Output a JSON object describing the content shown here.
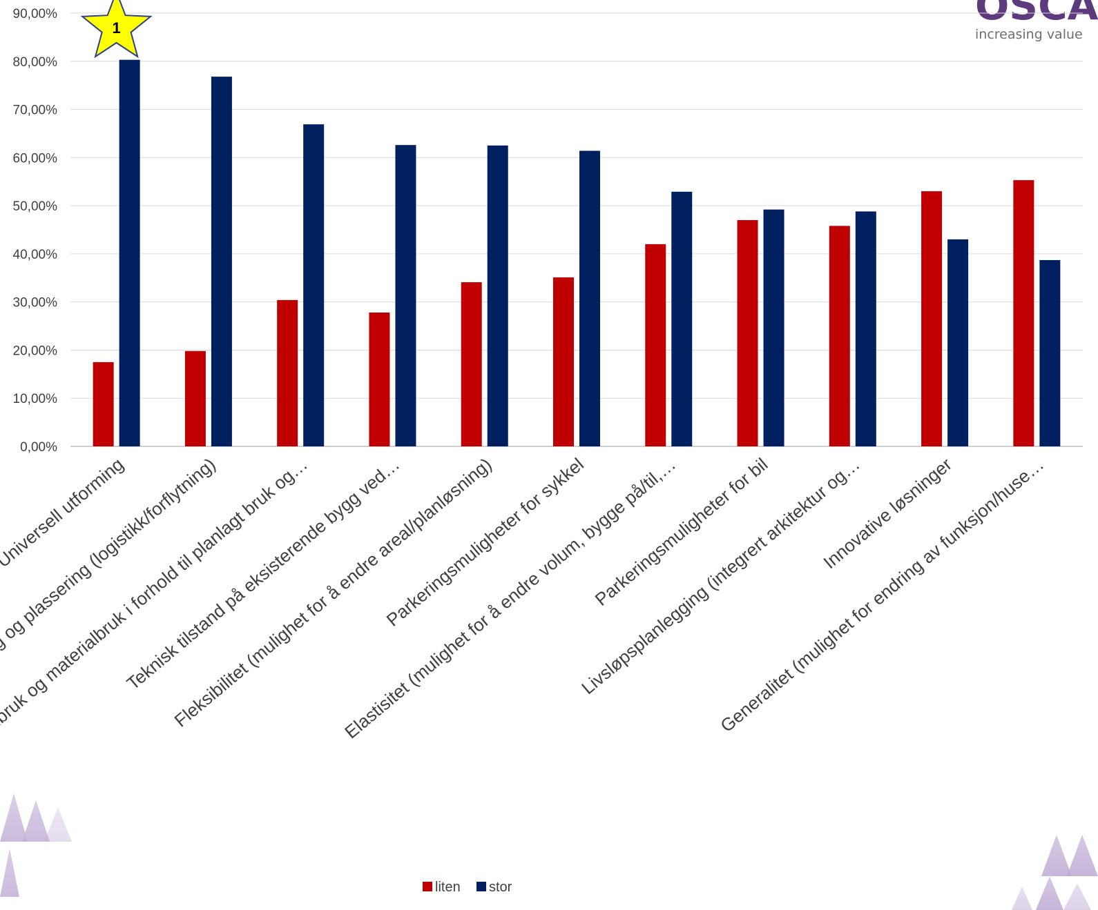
{
  "chart_data": {
    "type": "bar",
    "categories": [
      "Universell utforming",
      "Lokalisering og plassering (logistikk/forflytning)",
      "Arealbruk og materialbruk i forhold til planlagt bruk og…",
      "Teknisk tilstand på eksisterende bygg ved…",
      "Fleksibilitet (mulighet for å endre areal/planløsning)",
      "Parkeringsmuligheter for sykkel",
      "Elastisitet (mulighet for å endre volum, bygge på/til,…",
      "Parkeringsmuligheter for bil",
      "Livsløpsplanlegging (integrert arkitektur og…",
      "Innovative løsninger",
      "Generalitet (mulighet for endring av funksjon/huse…"
    ],
    "series": [
      {
        "name": "liten",
        "color": "#c00000",
        "values": [
          0.175,
          0.198,
          0.304,
          0.278,
          0.341,
          0.351,
          0.42,
          0.47,
          0.458,
          0.53,
          0.553
        ]
      },
      {
        "name": "stor",
        "color": "#002060",
        "values": [
          0.803,
          0.768,
          0.669,
          0.626,
          0.625,
          0.614,
          0.529,
          0.492,
          0.488,
          0.43,
          0.387
        ]
      }
    ],
    "y_ticks": [
      "0,00%",
      "10,00%",
      "20,00%",
      "30,00%",
      "40,00%",
      "50,00%",
      "60,00%",
      "70,00%",
      "80,00%",
      "90,00%"
    ],
    "ylim": [
      0,
      0.9
    ],
    "grid": true,
    "legend_position": "bottom",
    "annotation": {
      "text": "1",
      "shape": "star-icon",
      "category_index": 0
    }
  },
  "logo": {
    "text": "OSCAR",
    "tagline": "increasing value"
  }
}
